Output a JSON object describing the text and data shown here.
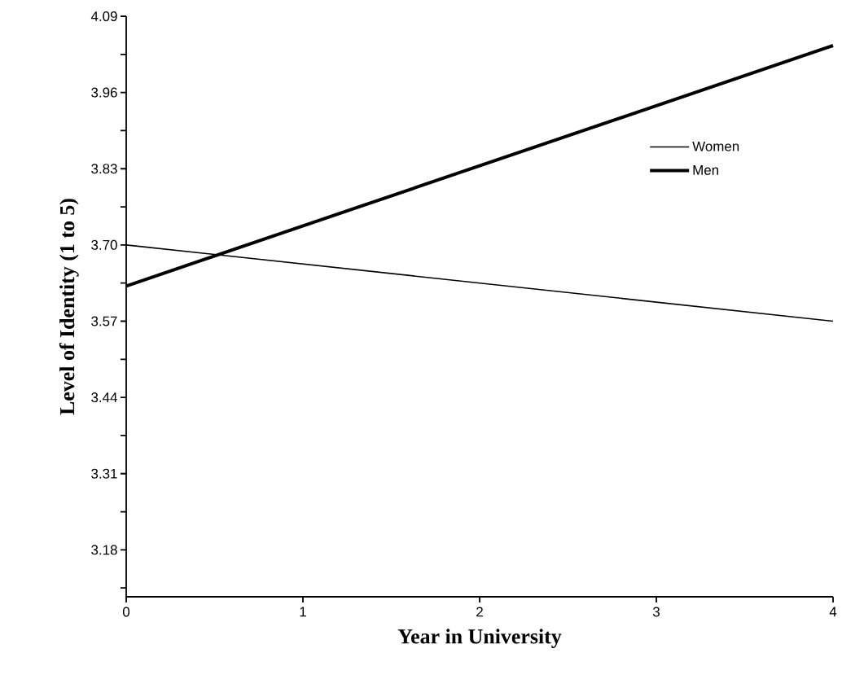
{
  "chart_data": {
    "type": "line",
    "xlabel": "Year in University",
    "ylabel": "Level of Identity (1 to 5)",
    "x": [
      0,
      4
    ],
    "series": [
      {
        "name": "Women",
        "color": "#000000",
        "values": [
          3.7,
          3.57
        ]
      },
      {
        "name": "Men",
        "color": "#000000",
        "values": [
          3.63,
          4.04
        ]
      }
    ],
    "xlim": [
      0,
      4
    ],
    "xticks": [
      0,
      1,
      2,
      3,
      4
    ],
    "ylim": [
      3.1,
      4.09
    ],
    "yticks": [
      {
        "value": 3.115,
        "label": null
      },
      3.18,
      {
        "value": 3.245,
        "label": null
      },
      3.31,
      {
        "value": 3.375,
        "label": null
      },
      3.44,
      {
        "value": 3.505,
        "label": null
      },
      3.57,
      {
        "value": 3.635,
        "label": null
      },
      {
        "value": 3.7,
        "label": "3.70"
      },
      {
        "value": 3.765,
        "label": null
      },
      3.83,
      {
        "value": 3.895,
        "label": null
      },
      3.96,
      {
        "value": 4.025,
        "label": null
      },
      4.09
    ],
    "legend": "top right",
    "marker": "none",
    "line_style": "solid",
    "grid": false
  }
}
